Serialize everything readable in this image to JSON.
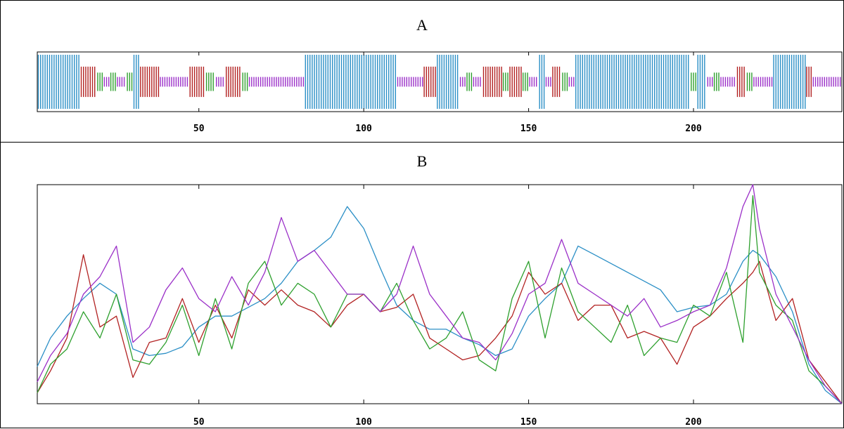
{
  "panels": [
    {
      "label": "A"
    },
    {
      "label": "B"
    }
  ],
  "colors": {
    "blue": "#2b8fc6",
    "red": "#b22222",
    "green": "#2ea02e",
    "purple": "#9b30c8"
  },
  "chart_data": [
    {
      "type": "bar",
      "title": "A",
      "xlabel": "",
      "ylabel": "",
      "xlim": [
        1,
        245
      ],
      "xticks": [
        50,
        100,
        150,
        200
      ],
      "legend": "none",
      "segments": [
        {
          "start": 1,
          "end": 14,
          "class": "blue"
        },
        {
          "start": 14,
          "end": 19,
          "class": "red"
        },
        {
          "start": 19,
          "end": 21,
          "class": "green"
        },
        {
          "start": 21,
          "end": 23,
          "class": "purple"
        },
        {
          "start": 23,
          "end": 25,
          "class": "green"
        },
        {
          "start": 25,
          "end": 28,
          "class": "purple"
        },
        {
          "start": 28,
          "end": 30,
          "class": "green"
        },
        {
          "start": 30,
          "end": 32,
          "class": "blue"
        },
        {
          "start": 32,
          "end": 38,
          "class": "red"
        },
        {
          "start": 38,
          "end": 47,
          "class": "purple"
        },
        {
          "start": 47,
          "end": 52,
          "class": "red"
        },
        {
          "start": 52,
          "end": 55,
          "class": "green"
        },
        {
          "start": 55,
          "end": 58,
          "class": "purple"
        },
        {
          "start": 58,
          "end": 63,
          "class": "red"
        },
        {
          "start": 63,
          "end": 65,
          "class": "green"
        },
        {
          "start": 65,
          "end": 82,
          "class": "purple"
        },
        {
          "start": 82,
          "end": 110,
          "class": "blue"
        },
        {
          "start": 110,
          "end": 118,
          "class": "purple"
        },
        {
          "start": 118,
          "end": 122,
          "class": "red"
        },
        {
          "start": 122,
          "end": 129,
          "class": "blue"
        },
        {
          "start": 129,
          "end": 131,
          "class": "purple"
        },
        {
          "start": 131,
          "end": 133,
          "class": "green"
        },
        {
          "start": 133,
          "end": 136,
          "class": "purple"
        },
        {
          "start": 136,
          "end": 142,
          "class": "red"
        },
        {
          "start": 142,
          "end": 144,
          "class": "green"
        },
        {
          "start": 144,
          "end": 148,
          "class": "red"
        },
        {
          "start": 148,
          "end": 150,
          "class": "green"
        },
        {
          "start": 150,
          "end": 153,
          "class": "purple"
        },
        {
          "start": 153,
          "end": 155,
          "class": "blue"
        },
        {
          "start": 155,
          "end": 157,
          "class": "purple"
        },
        {
          "start": 157,
          "end": 160,
          "class": "red"
        },
        {
          "start": 160,
          "end": 162,
          "class": "green"
        },
        {
          "start": 162,
          "end": 164,
          "class": "purple"
        },
        {
          "start": 164,
          "end": 199,
          "class": "blue"
        },
        {
          "start": 199,
          "end": 201,
          "class": "green"
        },
        {
          "start": 201,
          "end": 204,
          "class": "blue"
        },
        {
          "start": 204,
          "end": 206,
          "class": "purple"
        },
        {
          "start": 206,
          "end": 208,
          "class": "green"
        },
        {
          "start": 208,
          "end": 213,
          "class": "purple"
        },
        {
          "start": 213,
          "end": 216,
          "class": "red"
        },
        {
          "start": 216,
          "end": 218,
          "class": "green"
        },
        {
          "start": 218,
          "end": 224,
          "class": "purple"
        },
        {
          "start": 224,
          "end": 234,
          "class": "blue"
        },
        {
          "start": 234,
          "end": 236,
          "class": "red"
        },
        {
          "start": 236,
          "end": 245,
          "class": "purple"
        }
      ]
    },
    {
      "type": "line",
      "title": "B",
      "xlabel": "",
      "ylabel": "",
      "xlim": [
        1,
        245
      ],
      "ylim": [
        0,
        1
      ],
      "xticks": [
        50,
        100,
        150,
        200
      ],
      "legend": "none",
      "series": [
        {
          "color": "#2b8fc6",
          "x": [
            1,
            5,
            10,
            15,
            20,
            25,
            30,
            35,
            40,
            45,
            50,
            55,
            60,
            65,
            70,
            75,
            80,
            85,
            90,
            95,
            100,
            105,
            110,
            115,
            120,
            125,
            130,
            135,
            140,
            145,
            150,
            155,
            160,
            165,
            170,
            175,
            180,
            185,
            190,
            195,
            200,
            205,
            210,
            215,
            218,
            220,
            225,
            230,
            235,
            240,
            245
          ],
          "values": [
            0.17,
            0.3,
            0.4,
            0.48,
            0.55,
            0.5,
            0.25,
            0.22,
            0.23,
            0.26,
            0.35,
            0.4,
            0.4,
            0.44,
            0.48,
            0.55,
            0.65,
            0.7,
            0.76,
            0.9,
            0.8,
            0.62,
            0.45,
            0.38,
            0.34,
            0.34,
            0.3,
            0.27,
            0.22,
            0.25,
            0.4,
            0.48,
            0.55,
            0.72,
            0.68,
            0.64,
            0.6,
            0.56,
            0.52,
            0.42,
            0.44,
            0.45,
            0.5,
            0.65,
            0.7,
            0.68,
            0.58,
            0.42,
            0.18,
            0.06,
            0.0
          ]
        },
        {
          "color": "#b22222",
          "x": [
            1,
            5,
            10,
            15,
            20,
            25,
            30,
            35,
            40,
            45,
            50,
            55,
            60,
            65,
            70,
            75,
            80,
            85,
            90,
            95,
            100,
            105,
            110,
            115,
            120,
            125,
            130,
            135,
            140,
            145,
            150,
            155,
            160,
            165,
            170,
            175,
            180,
            185,
            190,
            195,
            200,
            205,
            210,
            215,
            218,
            220,
            225,
            230,
            235,
            240,
            245
          ],
          "values": [
            0.05,
            0.15,
            0.3,
            0.68,
            0.35,
            0.4,
            0.12,
            0.28,
            0.3,
            0.48,
            0.28,
            0.45,
            0.3,
            0.52,
            0.45,
            0.52,
            0.45,
            0.42,
            0.35,
            0.45,
            0.5,
            0.42,
            0.44,
            0.5,
            0.3,
            0.25,
            0.2,
            0.22,
            0.3,
            0.4,
            0.6,
            0.5,
            0.55,
            0.38,
            0.45,
            0.45,
            0.3,
            0.33,
            0.3,
            0.18,
            0.35,
            0.4,
            0.48,
            0.55,
            0.6,
            0.65,
            0.38,
            0.48,
            0.2,
            0.1,
            0.0
          ]
        },
        {
          "color": "#2ea02e",
          "x": [
            1,
            5,
            10,
            15,
            20,
            25,
            30,
            35,
            40,
            45,
            50,
            55,
            60,
            65,
            70,
            75,
            80,
            85,
            90,
            95,
            100,
            105,
            110,
            115,
            120,
            125,
            130,
            135,
            140,
            145,
            150,
            155,
            160,
            165,
            170,
            175,
            180,
            185,
            190,
            195,
            200,
            205,
            210,
            215,
            218,
            220,
            225,
            230,
            235,
            240,
            245
          ],
          "values": [
            0.05,
            0.18,
            0.25,
            0.42,
            0.3,
            0.5,
            0.2,
            0.18,
            0.28,
            0.45,
            0.22,
            0.48,
            0.25,
            0.55,
            0.65,
            0.45,
            0.55,
            0.5,
            0.35,
            0.5,
            0.5,
            0.42,
            0.55,
            0.38,
            0.25,
            0.3,
            0.42,
            0.2,
            0.15,
            0.48,
            0.65,
            0.3,
            0.62,
            0.42,
            0.35,
            0.28,
            0.45,
            0.22,
            0.3,
            0.28,
            0.45,
            0.4,
            0.6,
            0.28,
            0.95,
            0.6,
            0.45,
            0.38,
            0.15,
            0.08,
            0.0
          ]
        },
        {
          "color": "#9b30c8",
          "x": [
            1,
            5,
            10,
            15,
            20,
            25,
            30,
            35,
            40,
            45,
            50,
            55,
            60,
            65,
            70,
            75,
            80,
            85,
            90,
            95,
            100,
            105,
            110,
            115,
            120,
            125,
            130,
            135,
            140,
            145,
            150,
            155,
            160,
            165,
            170,
            175,
            180,
            185,
            190,
            195,
            200,
            205,
            210,
            215,
            218,
            220,
            225,
            230,
            235,
            240,
            245
          ],
          "values": [
            0.1,
            0.22,
            0.32,
            0.5,
            0.58,
            0.72,
            0.28,
            0.35,
            0.52,
            0.62,
            0.48,
            0.42,
            0.58,
            0.45,
            0.6,
            0.85,
            0.65,
            0.7,
            0.6,
            0.5,
            0.5,
            0.42,
            0.5,
            0.72,
            0.5,
            0.4,
            0.3,
            0.28,
            0.2,
            0.32,
            0.5,
            0.55,
            0.75,
            0.55,
            0.5,
            0.45,
            0.4,
            0.48,
            0.35,
            0.38,
            0.42,
            0.45,
            0.62,
            0.9,
            1.0,
            0.8,
            0.5,
            0.35,
            0.2,
            0.08,
            0.0
          ]
        }
      ]
    }
  ]
}
